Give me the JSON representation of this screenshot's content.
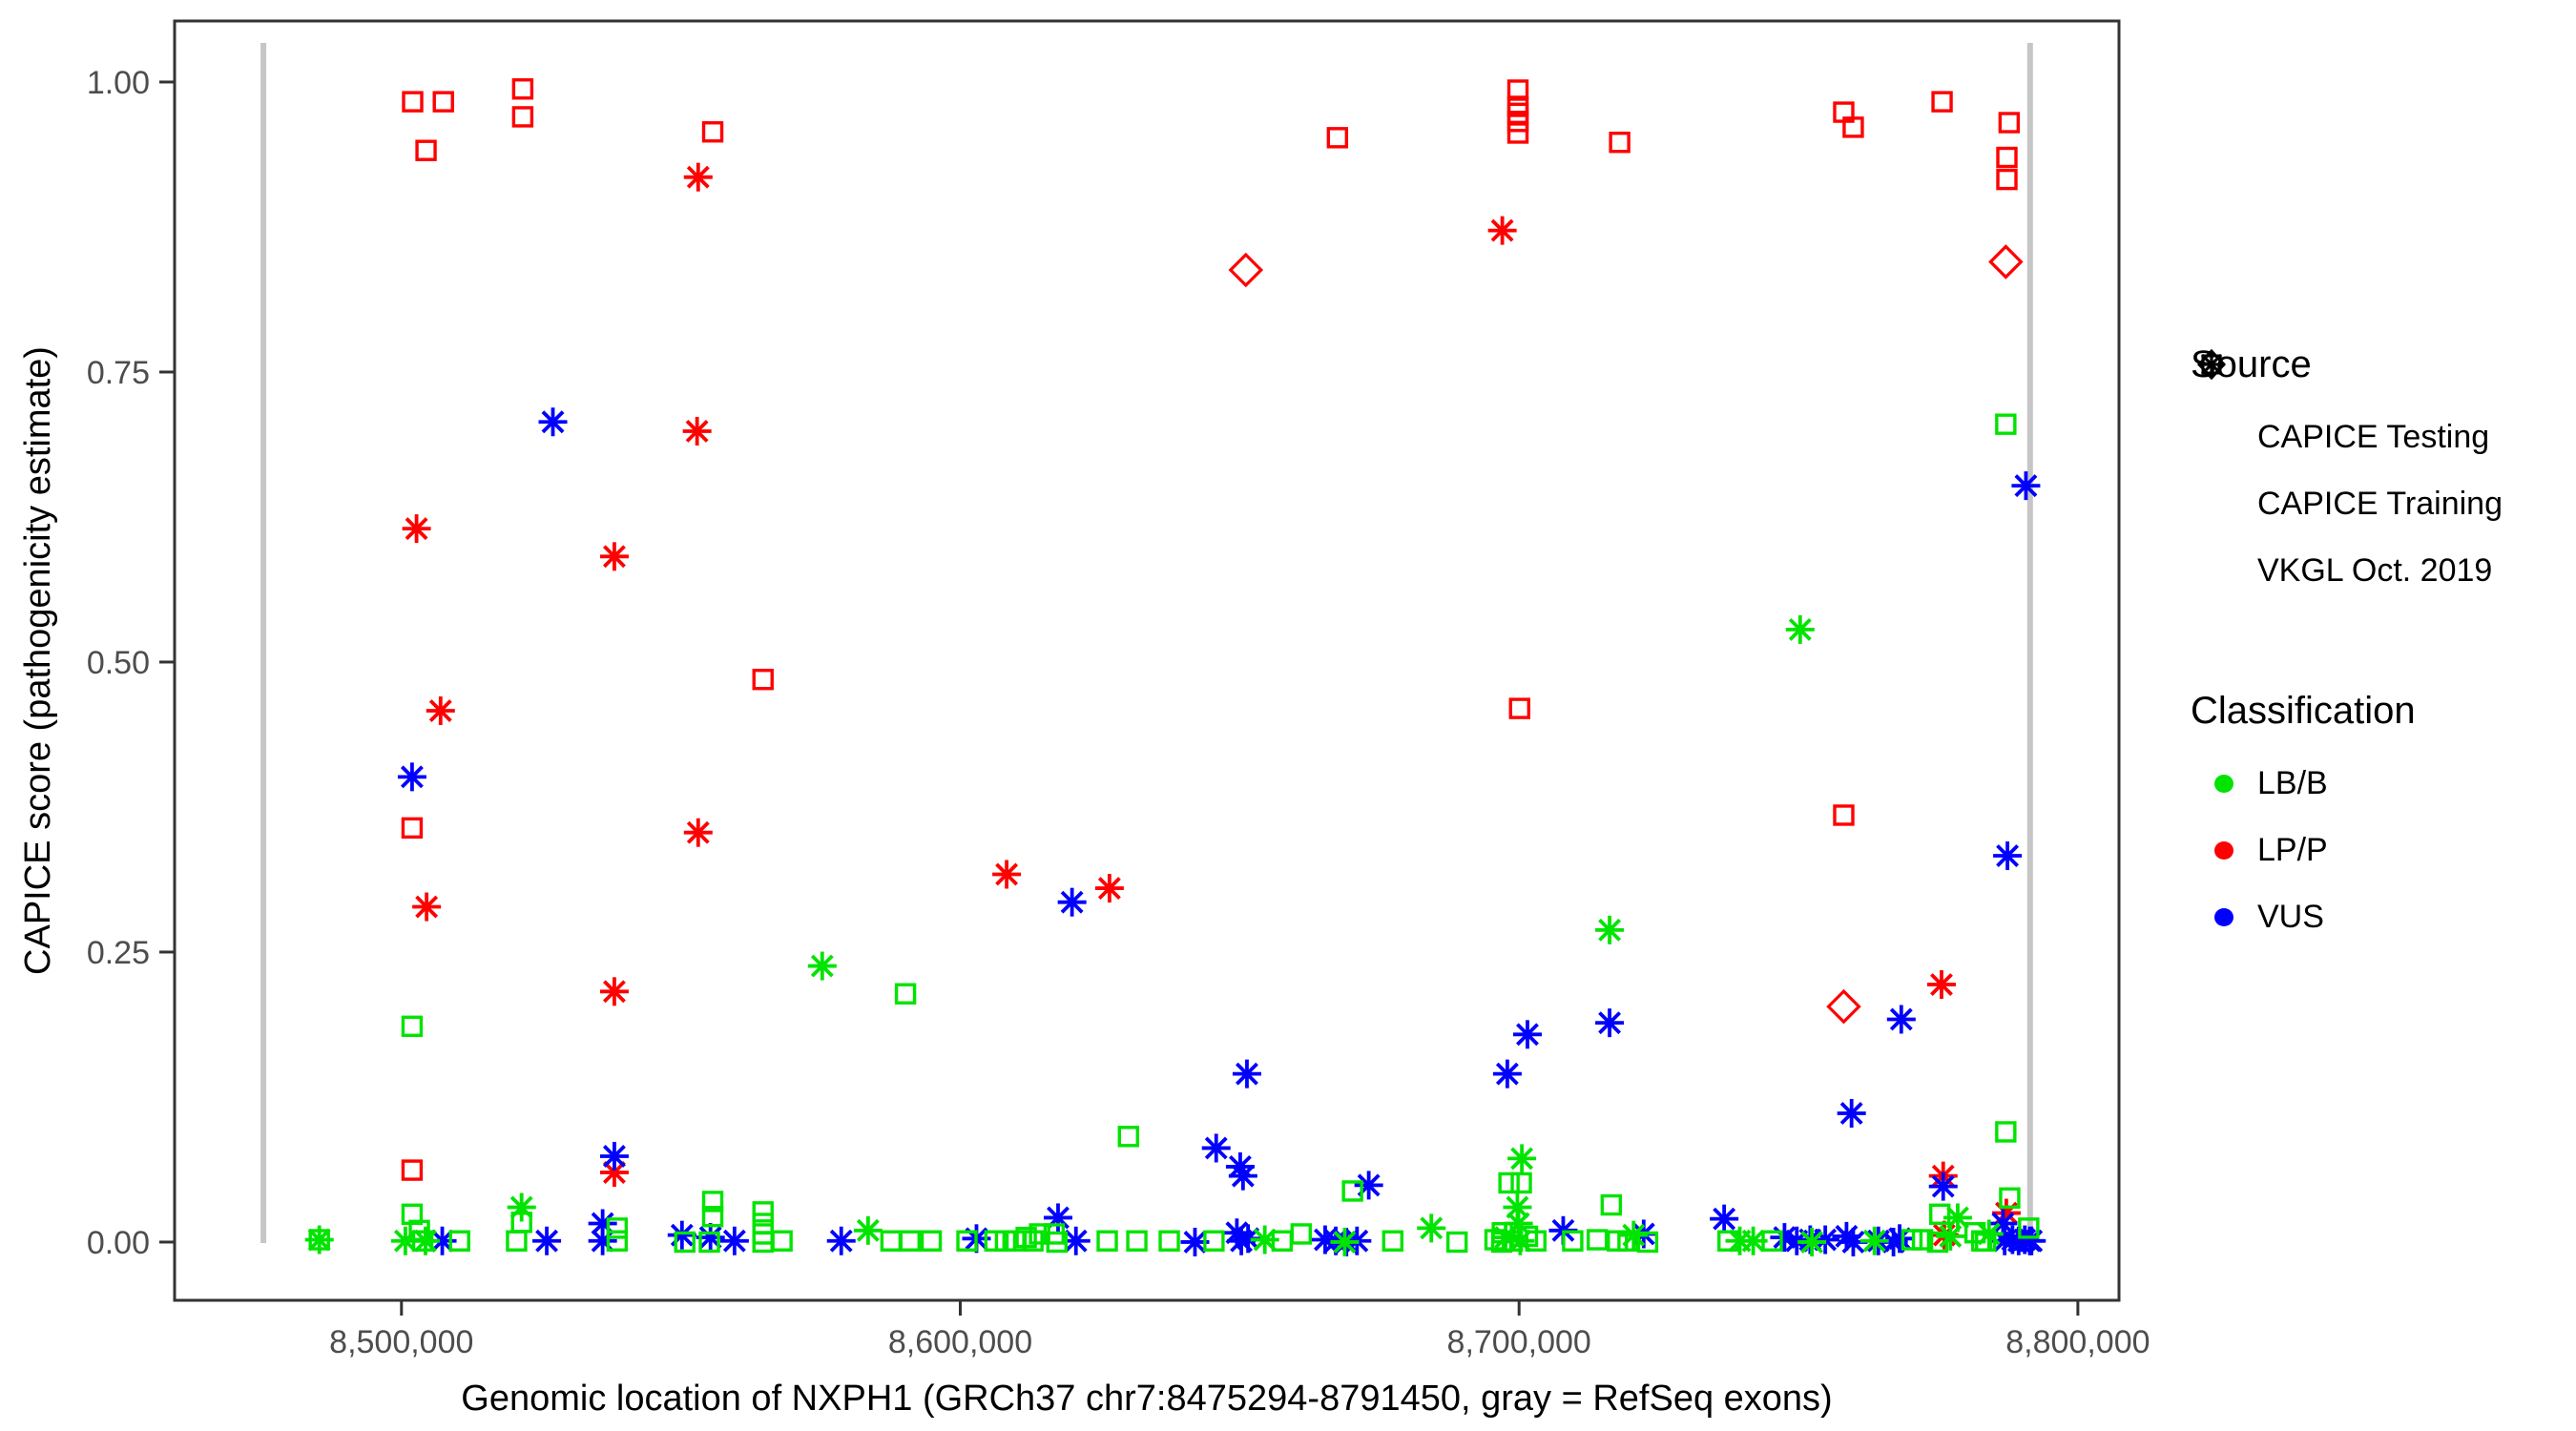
{
  "chart_data": {
    "type": "scatter",
    "xlabel": "Genomic location of NXPH1 (GRCh37 chr7:8475294-8791450, gray = RefSeq exons)",
    "ylabel": "CAPICE score (pathogenicity estimate)",
    "xlim": [
      8459400,
      8807360
    ],
    "ylim": [
      -0.0502,
      1.0526
    ],
    "grid": false,
    "x_ticks": {
      "values": [
        8500000,
        8600000,
        8700000,
        8800000
      ],
      "labels": [
        "8,500,000",
        "8,600,000",
        "8,700,000",
        "8,800,000"
      ]
    },
    "y_ticks": {
      "values": [
        0,
        0.25,
        0.5,
        0.75,
        1.0
      ],
      "labels": [
        "0.00",
        "0.25",
        "0.50",
        "0.75",
        "1.00"
      ]
    },
    "refseq_exon_lines_x": [
      8475294,
      8791450
    ],
    "exon_line_color": "#c6c6c6",
    "classification_colors": {
      "LB/B": "#00e400",
      "LP/P": "#ff0000",
      "VUS": "#0000ff"
    },
    "source_shapes": {
      "CAPICE Testing": "diamond",
      "CAPICE Training": "square",
      "VKGL Oct. 2019": "asterisk"
    },
    "point_format": "[genomic_position, capice_score, classification(g=LB/B, r=LP/P, b=VUS), shape(s=square, a=asterisk, d=diamond)]",
    "points": [
      [
        8502000,
        0.983,
        "r",
        "s"
      ],
      [
        8507500,
        0.983,
        "r",
        "s"
      ],
      [
        8504400,
        0.941,
        "r",
        "s"
      ],
      [
        8521700,
        0.994,
        "r",
        "s"
      ],
      [
        8521700,
        0.97,
        "r",
        "s"
      ],
      [
        8555700,
        0.957,
        "r",
        "s"
      ],
      [
        8564700,
        0.485,
        "r",
        "s"
      ],
      [
        8501900,
        0.357,
        "r",
        "s"
      ],
      [
        8501900,
        0.062,
        "r",
        "s"
      ],
      [
        8667500,
        0.952,
        "r",
        "s"
      ],
      [
        8699800,
        0.993,
        "r",
        "s"
      ],
      [
        8699800,
        0.979,
        "r",
        "s"
      ],
      [
        8699800,
        0.973,
        "r",
        "s"
      ],
      [
        8699800,
        0.966,
        "r",
        "s"
      ],
      [
        8699800,
        0.956,
        "r",
        "s"
      ],
      [
        8718000,
        0.948,
        "r",
        "s"
      ],
      [
        8758100,
        0.974,
        "r",
        "s"
      ],
      [
        8759800,
        0.961,
        "r",
        "s"
      ],
      [
        8775700,
        0.983,
        "r",
        "s"
      ],
      [
        8787700,
        0.965,
        "r",
        "s"
      ],
      [
        8787300,
        0.935,
        "r",
        "s"
      ],
      [
        8787300,
        0.916,
        "r",
        "s"
      ],
      [
        8700100,
        0.46,
        "r",
        "s"
      ],
      [
        8758100,
        0.368,
        "r",
        "s"
      ],
      [
        8553100,
        0.918,
        "r",
        "a"
      ],
      [
        8552900,
        0.699,
        "r",
        "a"
      ],
      [
        8502700,
        0.615,
        "r",
        "a"
      ],
      [
        8538100,
        0.591,
        "r",
        "a"
      ],
      [
        8507000,
        0.458,
        "r",
        "a"
      ],
      [
        8553100,
        0.353,
        "r",
        "a"
      ],
      [
        8504500,
        0.289,
        "r",
        "a"
      ],
      [
        8538100,
        0.216,
        "r",
        "a"
      ],
      [
        8538100,
        0.06,
        "r",
        "a"
      ],
      [
        8608300,
        0.317,
        "r",
        "a"
      ],
      [
        8626700,
        0.305,
        "r",
        "a"
      ],
      [
        8697000,
        0.872,
        "r",
        "a"
      ],
      [
        8775600,
        0.222,
        "r",
        "a"
      ],
      [
        8775900,
        0.057,
        "r",
        "a"
      ],
      [
        8787200,
        0.025,
        "r",
        "a"
      ],
      [
        8776100,
        0.006,
        "r",
        "a"
      ],
      [
        8651100,
        0.838,
        "r",
        "d"
      ],
      [
        8787100,
        0.845,
        "r",
        "d"
      ],
      [
        8758100,
        0.203,
        "r",
        "d"
      ],
      [
        8527100,
        0.707,
        "b",
        "a"
      ],
      [
        8501900,
        0.401,
        "b",
        "a"
      ],
      [
        8538100,
        0.074,
        "b",
        "a"
      ],
      [
        8620000,
        0.293,
        "b",
        "a"
      ],
      [
        8645800,
        0.081,
        "b",
        "a"
      ],
      [
        8651300,
        0.145,
        "b",
        "a"
      ],
      [
        8650100,
        0.065,
        "b",
        "a"
      ],
      [
        8650600,
        0.057,
        "b",
        "a"
      ],
      [
        8673100,
        0.049,
        "b",
        "a"
      ],
      [
        8790700,
        0.652,
        "b",
        "a"
      ],
      [
        8787400,
        0.333,
        "b",
        "a"
      ],
      [
        8768400,
        0.192,
        "b",
        "a"
      ],
      [
        8716200,
        0.189,
        "b",
        "a"
      ],
      [
        8701500,
        0.179,
        "b",
        "a"
      ],
      [
        8697900,
        0.145,
        "b",
        "a"
      ],
      [
        8759500,
        0.111,
        "b",
        "a"
      ],
      [
        8775900,
        0.048,
        "b",
        "a"
      ],
      [
        8736700,
        0.02,
        "b",
        "a"
      ],
      [
        8707900,
        0.01,
        "b",
        "a"
      ],
      [
        8722300,
        0.007,
        "b",
        "a"
      ],
      [
        8617500,
        0.021,
        "b",
        "a"
      ],
      [
        8507300,
        0.001,
        "b",
        "a"
      ],
      [
        8526000,
        0.001,
        "b",
        "a"
      ],
      [
        8536000,
        0.016,
        "b",
        "a"
      ],
      [
        8536000,
        0.001,
        "b",
        "a"
      ],
      [
        8550200,
        0.006,
        "b",
        "a"
      ],
      [
        8555300,
        0.004,
        "b",
        "a"
      ],
      [
        8559600,
        0.001,
        "b",
        "a"
      ],
      [
        8578700,
        0.001,
        "b",
        "a"
      ],
      [
        8602900,
        0.003,
        "b",
        "a"
      ],
      [
        8620700,
        0.001,
        "b",
        "a"
      ],
      [
        8642000,
        0.0,
        "b",
        "a"
      ],
      [
        8649500,
        0.008,
        "b",
        "a"
      ],
      [
        8650300,
        0.001,
        "b",
        "a"
      ],
      [
        8651500,
        0.003,
        "b",
        "a"
      ],
      [
        8665300,
        0.002,
        "b",
        "a"
      ],
      [
        8667200,
        0.001,
        "b",
        "a"
      ],
      [
        8669100,
        0.0,
        "b",
        "a"
      ],
      [
        8671000,
        0.001,
        "b",
        "a"
      ],
      [
        8747500,
        0.004,
        "b",
        "a"
      ],
      [
        8749700,
        0.001,
        "b",
        "a"
      ],
      [
        8752100,
        0.002,
        "b",
        "a"
      ],
      [
        8754800,
        0.002,
        "b",
        "a"
      ],
      [
        8758600,
        0.005,
        "b",
        "a"
      ],
      [
        8759800,
        0.0,
        "b",
        "a"
      ],
      [
        8764300,
        0.001,
        "b",
        "a"
      ],
      [
        8767000,
        0.0,
        "b",
        "a"
      ],
      [
        8768100,
        0.003,
        "b",
        "a"
      ],
      [
        8786600,
        0.016,
        "b",
        "a"
      ],
      [
        8786900,
        0.001,
        "b",
        "a"
      ],
      [
        8788300,
        0.002,
        "b",
        "a"
      ],
      [
        8789400,
        0.001,
        "b",
        "a"
      ],
      [
        8790500,
        0.002,
        "b",
        "a"
      ],
      [
        8791400,
        0.001,
        "b",
        "a"
      ],
      [
        8791700,
        0.001,
        "b",
        "a"
      ],
      [
        8501900,
        0.186,
        "g",
        "s"
      ],
      [
        8590200,
        0.214,
        "g",
        "s"
      ],
      [
        8630100,
        0.091,
        "g",
        "s"
      ],
      [
        8670200,
        0.044,
        "g",
        "s"
      ],
      [
        8787100,
        0.705,
        "g",
        "s"
      ],
      [
        8787100,
        0.095,
        "g",
        "s"
      ],
      [
        8698200,
        0.051,
        "g",
        "s"
      ],
      [
        8700400,
        0.051,
        "g",
        "s"
      ],
      [
        8716500,
        0.032,
        "g",
        "s"
      ],
      [
        8775300,
        0.024,
        "g",
        "s"
      ],
      [
        8787800,
        0.038,
        "g",
        "s"
      ],
      [
        8791200,
        0.012,
        "g",
        "s"
      ],
      [
        8485300,
        0.002,
        "g",
        "s"
      ],
      [
        8501900,
        0.024,
        "g",
        "s"
      ],
      [
        8503200,
        0.01,
        "g",
        "s"
      ],
      [
        8503800,
        0.001,
        "g",
        "s"
      ],
      [
        8510400,
        0.001,
        "g",
        "s"
      ],
      [
        8520600,
        0.001,
        "g",
        "s"
      ],
      [
        8521500,
        0.017,
        "g",
        "s"
      ],
      [
        8538600,
        0.012,
        "g",
        "s"
      ],
      [
        8538600,
        0.001,
        "g",
        "s"
      ],
      [
        8550700,
        0.0,
        "g",
        "s"
      ],
      [
        8555700,
        0.035,
        "g",
        "s"
      ],
      [
        8555700,
        0.022,
        "g",
        "s"
      ],
      [
        8555100,
        0.0,
        "g",
        "s"
      ],
      [
        8564700,
        0.026,
        "g",
        "s"
      ],
      [
        8564700,
        0.016,
        "g",
        "s"
      ],
      [
        8564700,
        0.007,
        "g",
        "s"
      ],
      [
        8564700,
        0.0,
        "g",
        "s"
      ],
      [
        8568100,
        0.001,
        "g",
        "s"
      ],
      [
        8587600,
        0.001,
        "g",
        "s"
      ],
      [
        8591000,
        0.001,
        "g",
        "s"
      ],
      [
        8594800,
        0.001,
        "g",
        "s"
      ],
      [
        8601200,
        0.001,
        "g",
        "s"
      ],
      [
        8606200,
        0.001,
        "g",
        "s"
      ],
      [
        8608100,
        0.001,
        "g",
        "s"
      ],
      [
        8610000,
        0.001,
        "g",
        "s"
      ],
      [
        8611800,
        0.004,
        "g",
        "s"
      ],
      [
        8613000,
        0.001,
        "g",
        "s"
      ],
      [
        8614200,
        0.007,
        "g",
        "s"
      ],
      [
        8616800,
        0.007,
        "g",
        "s"
      ],
      [
        8617300,
        0.0,
        "g",
        "s"
      ],
      [
        8626300,
        0.001,
        "g",
        "s"
      ],
      [
        8631600,
        0.001,
        "g",
        "s"
      ],
      [
        8637400,
        0.001,
        "g",
        "s"
      ],
      [
        8645400,
        0.001,
        "g",
        "s"
      ],
      [
        8657600,
        0.001,
        "g",
        "s"
      ],
      [
        8661000,
        0.007,
        "g",
        "s"
      ],
      [
        8677400,
        0.001,
        "g",
        "s"
      ],
      [
        8688900,
        0.0,
        "g",
        "s"
      ],
      [
        8696900,
        0.0,
        "g",
        "s"
      ],
      [
        8695700,
        0.002,
        "g",
        "s"
      ],
      [
        8697000,
        0.008,
        "g",
        "s"
      ],
      [
        8698800,
        0.001,
        "g",
        "s"
      ],
      [
        8701500,
        0.005,
        "g",
        "s"
      ],
      [
        8703000,
        0.001,
        "g",
        "s"
      ],
      [
        8709600,
        0.001,
        "g",
        "s"
      ],
      [
        8714000,
        0.002,
        "g",
        "s"
      ],
      [
        8717600,
        0.001,
        "g",
        "s"
      ],
      [
        8719500,
        0.001,
        "g",
        "s"
      ],
      [
        8723000,
        0.0,
        "g",
        "s"
      ],
      [
        8737400,
        0.001,
        "g",
        "s"
      ],
      [
        8745300,
        0.001,
        "g",
        "s"
      ],
      [
        8770300,
        0.002,
        "g",
        "s"
      ],
      [
        8772200,
        0.002,
        "g",
        "s"
      ],
      [
        8774900,
        0.0,
        "g",
        "s"
      ],
      [
        8781600,
        0.008,
        "g",
        "s"
      ],
      [
        8782800,
        0.001,
        "g",
        "s"
      ],
      [
        8783500,
        0.001,
        "g",
        "s"
      ],
      [
        8575300,
        0.238,
        "g",
        "a"
      ],
      [
        8750300,
        0.528,
        "g",
        "a"
      ],
      [
        8716200,
        0.269,
        "g",
        "a"
      ],
      [
        8700500,
        0.072,
        "g",
        "a"
      ],
      [
        8778500,
        0.021,
        "g",
        "a"
      ],
      [
        8699700,
        0.03,
        "g",
        "a"
      ],
      [
        8699900,
        0.016,
        "g",
        "a"
      ],
      [
        8485300,
        0.002,
        "g",
        "a"
      ],
      [
        8500700,
        0.001,
        "g",
        "a"
      ],
      [
        8504300,
        0.001,
        "g",
        "a"
      ],
      [
        8521500,
        0.03,
        "g",
        "a"
      ],
      [
        8583500,
        0.01,
        "g",
        "a"
      ],
      [
        8654500,
        0.002,
        "g",
        "a"
      ],
      [
        8668800,
        0.0,
        "g",
        "a"
      ],
      [
        8684300,
        0.012,
        "g",
        "a"
      ],
      [
        8697600,
        0.004,
        "g",
        "a"
      ],
      [
        8700200,
        0.001,
        "g",
        "a"
      ],
      [
        8720500,
        0.006,
        "g",
        "a"
      ],
      [
        8739500,
        0.001,
        "g",
        "a"
      ],
      [
        8741900,
        0.001,
        "g",
        "a"
      ],
      [
        8752400,
        0.0,
        "g",
        "a"
      ],
      [
        8763600,
        0.001,
        "g",
        "a"
      ],
      [
        8777200,
        0.005,
        "g",
        "a"
      ],
      [
        8784100,
        0.007,
        "g",
        "a"
      ]
    ]
  },
  "legend": {
    "source_title": "Source",
    "source_items": [
      {
        "label": "CAPICE Testing",
        "shape": "diamond"
      },
      {
        "label": "CAPICE Training",
        "shape": "square"
      },
      {
        "label": "VKGL Oct. 2019",
        "shape": "asterisk"
      }
    ],
    "classification_title": "Classification",
    "classification_items": [
      {
        "label": "LB/B",
        "color": "#00e400"
      },
      {
        "label": "LP/P",
        "color": "#ff0000"
      },
      {
        "label": "VUS",
        "color": "#0000ff"
      }
    ]
  }
}
